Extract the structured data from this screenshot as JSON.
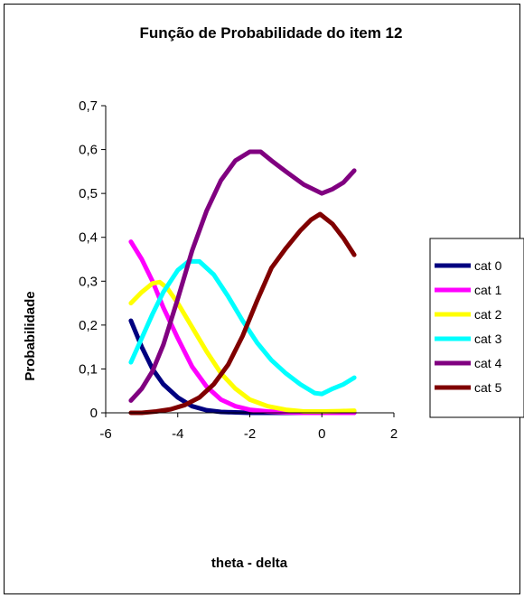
{
  "chart_data": {
    "type": "line",
    "title": "Função de Probabilidade do item 12",
    "xlabel": "theta - delta",
    "ylabel": "Probabilidade",
    "xlim": [
      -6,
      2
    ],
    "ylim": [
      0,
      0.7
    ],
    "x_ticks": [
      "-6",
      "-4",
      "-2",
      "0",
      "2"
    ],
    "x_tick_values": [
      -6,
      -4,
      -2,
      0,
      2
    ],
    "y_ticks": [
      "0",
      "0,1",
      "0,2",
      "0,3",
      "0,4",
      "0,5",
      "0,6",
      "0,7"
    ],
    "y_tick_values": [
      0,
      0.1,
      0.2,
      0.3,
      0.4,
      0.5,
      0.6,
      0.7
    ],
    "grid": false,
    "legend_position": "right",
    "series": [
      {
        "name": "cat 0",
        "color": "#000080",
        "points": [
          [
            -5.3,
            0.21
          ],
          [
            -5.0,
            0.15
          ],
          [
            -4.7,
            0.1
          ],
          [
            -4.4,
            0.065
          ],
          [
            -4.0,
            0.035
          ],
          [
            -3.6,
            0.015
          ],
          [
            -3.2,
            0.006
          ],
          [
            -2.8,
            0.002
          ],
          [
            -2.4,
            0.001
          ],
          [
            -2.0,
            0.0
          ],
          [
            -1.5,
            0.0
          ],
          [
            -1.0,
            0.0
          ],
          [
            -0.5,
            0.0
          ],
          [
            0.0,
            0.0
          ],
          [
            0.5,
            0.0
          ],
          [
            0.9,
            0.0
          ]
        ]
      },
      {
        "name": "cat 1",
        "color": "#ff00ff",
        "points": [
          [
            -5.3,
            0.39
          ],
          [
            -5.0,
            0.35
          ],
          [
            -4.7,
            0.3
          ],
          [
            -4.4,
            0.24
          ],
          [
            -4.0,
            0.17
          ],
          [
            -3.6,
            0.105
          ],
          [
            -3.2,
            0.06
          ],
          [
            -2.8,
            0.03
          ],
          [
            -2.4,
            0.015
          ],
          [
            -2.0,
            0.007
          ],
          [
            -1.5,
            0.003
          ],
          [
            -1.0,
            0.001
          ],
          [
            -0.5,
            0.0
          ],
          [
            0.0,
            0.0
          ],
          [
            0.5,
            0.0
          ],
          [
            0.9,
            0.0
          ]
        ]
      },
      {
        "name": "cat 2",
        "color": "#ffff00",
        "points": [
          [
            -5.3,
            0.25
          ],
          [
            -5.0,
            0.275
          ],
          [
            -4.7,
            0.295
          ],
          [
            -4.5,
            0.298
          ],
          [
            -4.3,
            0.285
          ],
          [
            -4.0,
            0.25
          ],
          [
            -3.6,
            0.195
          ],
          [
            -3.2,
            0.14
          ],
          [
            -2.8,
            0.09
          ],
          [
            -2.4,
            0.055
          ],
          [
            -2.0,
            0.03
          ],
          [
            -1.5,
            0.015
          ],
          [
            -1.0,
            0.007
          ],
          [
            -0.5,
            0.003
          ],
          [
            0.0,
            0.003
          ],
          [
            0.5,
            0.004
          ],
          [
            0.9,
            0.005
          ]
        ]
      },
      {
        "name": "cat 3",
        "color": "#00ffff",
        "points": [
          [
            -5.3,
            0.115
          ],
          [
            -5.0,
            0.17
          ],
          [
            -4.7,
            0.225
          ],
          [
            -4.4,
            0.275
          ],
          [
            -4.0,
            0.325
          ],
          [
            -3.7,
            0.345
          ],
          [
            -3.4,
            0.345
          ],
          [
            -3.0,
            0.315
          ],
          [
            -2.6,
            0.265
          ],
          [
            -2.2,
            0.21
          ],
          [
            -1.8,
            0.16
          ],
          [
            -1.4,
            0.12
          ],
          [
            -1.0,
            0.09
          ],
          [
            -0.6,
            0.065
          ],
          [
            -0.2,
            0.045
          ],
          [
            0.0,
            0.043
          ],
          [
            0.3,
            0.055
          ],
          [
            0.6,
            0.065
          ],
          [
            0.9,
            0.08
          ]
        ]
      },
      {
        "name": "cat 4",
        "color": "#800080",
        "points": [
          [
            -5.3,
            0.028
          ],
          [
            -5.0,
            0.055
          ],
          [
            -4.7,
            0.095
          ],
          [
            -4.4,
            0.155
          ],
          [
            -4.0,
            0.26
          ],
          [
            -3.6,
            0.37
          ],
          [
            -3.2,
            0.46
          ],
          [
            -2.8,
            0.53
          ],
          [
            -2.4,
            0.575
          ],
          [
            -2.0,
            0.595
          ],
          [
            -1.7,
            0.595
          ],
          [
            -1.4,
            0.575
          ],
          [
            -1.0,
            0.55
          ],
          [
            -0.5,
            0.52
          ],
          [
            0.0,
            0.5
          ],
          [
            0.3,
            0.51
          ],
          [
            0.6,
            0.525
          ],
          [
            0.9,
            0.552
          ]
        ]
      },
      {
        "name": "cat 5",
        "color": "#800000",
        "points": [
          [
            -5.3,
            0.0
          ],
          [
            -5.0,
            0.0
          ],
          [
            -4.6,
            0.003
          ],
          [
            -4.2,
            0.008
          ],
          [
            -3.8,
            0.018
          ],
          [
            -3.4,
            0.035
          ],
          [
            -3.0,
            0.065
          ],
          [
            -2.6,
            0.11
          ],
          [
            -2.2,
            0.175
          ],
          [
            -1.8,
            0.255
          ],
          [
            -1.4,
            0.33
          ],
          [
            -1.0,
            0.375
          ],
          [
            -0.6,
            0.415
          ],
          [
            -0.3,
            0.44
          ],
          [
            -0.05,
            0.453
          ],
          [
            0.3,
            0.43
          ],
          [
            0.6,
            0.398
          ],
          [
            0.9,
            0.36
          ]
        ]
      }
    ]
  }
}
